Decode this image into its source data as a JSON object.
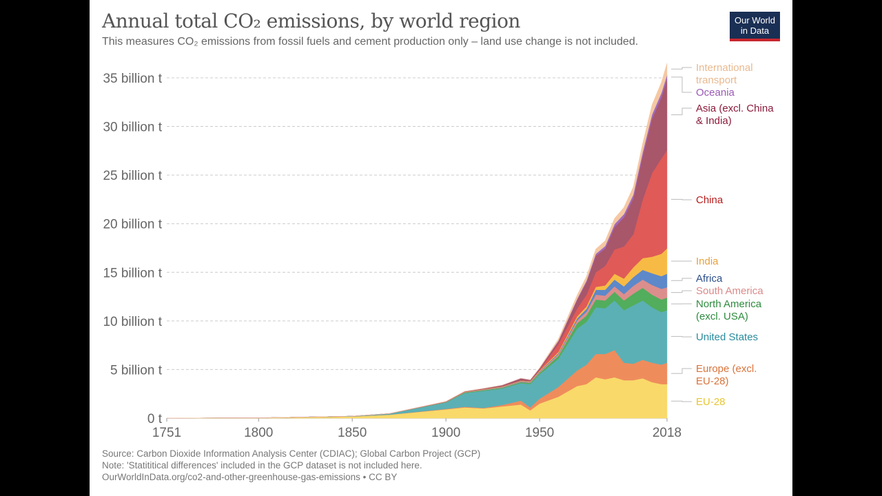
{
  "header": {
    "title": "Annual total CO₂ emissions, by world region",
    "subtitle": "This measures CO₂ emissions from fossil fuels and cement production only – land use change is not included.",
    "logo": "Our World in Data"
  },
  "footer": {
    "source": "Source: Carbon Dioxide Information Analysis Center (CDIAC); Global Carbon Project (GCP)",
    "note": "Note: 'Statititical differences' included in the GCP dataset is not included here.",
    "url": "OurWorldInData.org/co2-and-other-greenhouse-gas-emissions • CC BY"
  },
  "chart_data": {
    "type": "area",
    "stacked": true,
    "unit": "billion t",
    "xlim": [
      1751,
      2018
    ],
    "ylim": [
      0,
      37
    ],
    "grid": true,
    "legend": "right",
    "x_ticks": [
      "1751",
      "1800",
      "1850",
      "1900",
      "1950",
      "2018"
    ],
    "y_ticks": [
      {
        "v": 0,
        "label": "0 t"
      },
      {
        "v": 5,
        "label": "5 billion t"
      },
      {
        "v": 10,
        "label": "10 billion t"
      },
      {
        "v": 15,
        "label": "15 billion t"
      },
      {
        "v": 20,
        "label": "20 billion t"
      },
      {
        "v": 25,
        "label": "25 billion t"
      },
      {
        "v": 30,
        "label": "30 billion t"
      },
      {
        "v": 35,
        "label": "35 billion t"
      }
    ],
    "x": [
      1751,
      1800,
      1850,
      1870,
      1900,
      1910,
      1920,
      1930,
      1940,
      1945,
      1950,
      1960,
      1970,
      1975,
      1980,
      1985,
      1990,
      1995,
      2000,
      2005,
      2010,
      2015,
      2018
    ],
    "series": [
      {
        "name": "EU-28",
        "color": "#f9d96a",
        "label_color": "#e8c530",
        "values": [
          0.01,
          0.03,
          0.17,
          0.35,
          0.9,
          1.1,
          1.0,
          1.2,
          1.4,
          0.8,
          1.5,
          2.2,
          3.3,
          3.5,
          4.2,
          4.0,
          4.2,
          3.9,
          3.9,
          4.1,
          3.7,
          3.5,
          3.5
        ]
      },
      {
        "name": "Europe (excl. EU-28)",
        "color": "#ef8c5c",
        "label_color": "#d9733a",
        "values": [
          0,
          0,
          0.005,
          0.01,
          0.05,
          0.07,
          0.05,
          0.15,
          0.4,
          0.3,
          0.5,
          1.0,
          1.6,
          2.0,
          2.4,
          2.6,
          2.8,
          1.8,
          1.7,
          1.9,
          2.0,
          2.0,
          2.2
        ]
      },
      {
        "name": "United States",
        "color": "#5bb0b5",
        "label_color": "#2a8c9c",
        "values": [
          0,
          0.001,
          0.03,
          0.1,
          0.66,
          1.4,
          1.75,
          1.7,
          1.8,
          2.4,
          2.5,
          2.9,
          4.3,
          4.4,
          4.8,
          4.7,
          5.1,
          5.4,
          6.0,
          6.1,
          5.7,
          5.4,
          5.4
        ]
      },
      {
        "name": "North America (excl. USA)",
        "color": "#52ad5c",
        "label_color": "#2e8b3e",
        "values": [
          0,
          0,
          0.001,
          0.005,
          0.03,
          0.06,
          0.07,
          0.08,
          0.1,
          0.12,
          0.15,
          0.3,
          0.55,
          0.65,
          0.8,
          0.8,
          0.9,
          1.0,
          1.2,
          1.3,
          1.3,
          1.3,
          1.3
        ]
      },
      {
        "name": "South America",
        "color": "#dc8e8c",
        "label_color": "#d98a8a",
        "values": [
          0,
          0,
          0,
          0.002,
          0.01,
          0.02,
          0.03,
          0.04,
          0.05,
          0.06,
          0.09,
          0.18,
          0.3,
          0.38,
          0.5,
          0.5,
          0.55,
          0.65,
          0.8,
          0.85,
          1.0,
          1.1,
          1.05
        ]
      },
      {
        "name": "Africa",
        "color": "#5d88c9",
        "label_color": "#2d4e8a",
        "values": [
          0,
          0,
          0,
          0.002,
          0.01,
          0.02,
          0.03,
          0.04,
          0.05,
          0.05,
          0.07,
          0.1,
          0.2,
          0.3,
          0.5,
          0.6,
          0.7,
          0.8,
          0.9,
          1.0,
          1.2,
          1.3,
          1.4
        ]
      },
      {
        "name": "India",
        "color": "#f7bb45",
        "label_color": "#e6a23c",
        "values": [
          0,
          0,
          0,
          0.005,
          0.02,
          0.03,
          0.04,
          0.04,
          0.05,
          0.06,
          0.07,
          0.12,
          0.2,
          0.25,
          0.3,
          0.45,
          0.6,
          0.8,
          1.0,
          1.2,
          1.7,
          2.3,
          2.6
        ]
      },
      {
        "name": "China",
        "color": "#e05a57",
        "label_color": "#b71c1c",
        "values": [
          0,
          0,
          0,
          0.002,
          0.01,
          0.015,
          0.02,
          0.025,
          0.03,
          0.03,
          0.08,
          0.8,
          0.8,
          1.2,
          1.5,
          2.0,
          2.5,
          3.3,
          3.4,
          6.0,
          8.6,
          9.8,
          10.1
        ]
      },
      {
        "name": "Asia (excl. China & India)",
        "color": "#a8566a",
        "label_color": "#8b1a3a",
        "values": [
          0,
          0,
          0,
          0.005,
          0.02,
          0.03,
          0.05,
          0.1,
          0.2,
          0.1,
          0.15,
          0.3,
          0.9,
          1.3,
          1.7,
          1.8,
          2.3,
          3.0,
          3.7,
          4.5,
          5.6,
          6.3,
          7.3
        ]
      },
      {
        "name": "Oceania",
        "color": "#a06bbd",
        "label_color": "#9b59b6",
        "values": [
          0,
          0,
          0,
          0.002,
          0.01,
          0.01,
          0.015,
          0.02,
          0.025,
          0.025,
          0.03,
          0.05,
          0.1,
          0.15,
          0.2,
          0.25,
          0.3,
          0.33,
          0.38,
          0.4,
          0.43,
          0.44,
          0.45
        ]
      },
      {
        "name": "International transport",
        "color": "#f5c8a2",
        "label_color": "#e9b98f",
        "values": [
          0,
          0,
          0,
          0,
          0,
          0,
          0,
          0,
          0,
          0,
          0.05,
          0.2,
          0.4,
          0.45,
          0.5,
          0.55,
          0.6,
          0.7,
          0.8,
          0.9,
          1.0,
          1.1,
          1.2
        ]
      }
    ]
  }
}
